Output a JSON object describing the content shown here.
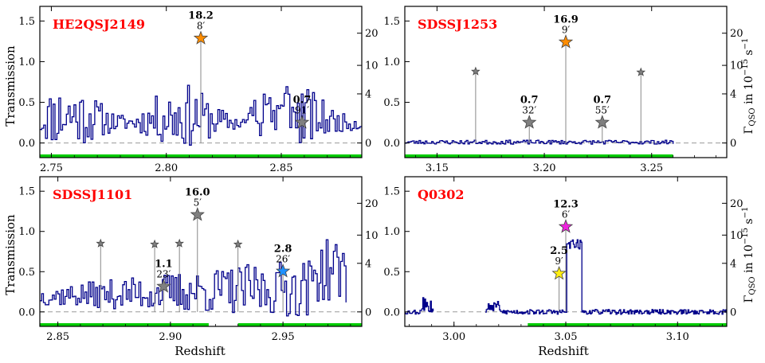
{
  "figure": {
    "ylabel": "Transmission",
    "xlabel": "Redshift",
    "right_label_main": "Γ",
    "right_label_sub": "QSO",
    "right_label_tail": " in 10",
    "right_label_exp": "−15",
    "right_label_unit": " s",
    "right_label_unit_exp": "−1",
    "colors": {
      "flux": "#00008b",
      "coverage": "#00cc00",
      "title": "#ff0000",
      "gray_star": "#808080",
      "orange_star": "#ff8c00",
      "blue_star": "#1e90ff",
      "magenta_star": "#ee22dd",
      "yellow_star": "#ffee11"
    }
  },
  "chart_data": [
    {
      "type": "line",
      "title": "HE2QSJ2149",
      "xlim": [
        2.745,
        2.885
      ],
      "ylim": [
        -0.18,
        1.68
      ],
      "xticks": [
        "2.75",
        "2.80",
        "2.85"
      ],
      "xtick_values": [
        2.75,
        2.8,
        2.85
      ],
      "yticks": [
        "0.0",
        "0.5",
        "1.0",
        "1.5"
      ],
      "ytick_values": [
        0.0,
        0.5,
        1.0,
        1.5
      ],
      "right_ticks": [
        "0",
        "4",
        "10",
        "20"
      ],
      "right_tick_values": [
        0,
        4,
        10,
        20
      ],
      "coverage": [
        [
          2.745,
          2.885
        ]
      ],
      "flux_range": [
        2.745,
        2.885
      ],
      "flux_seed": 11,
      "flux_profile": "noisy",
      "flux_level": 0.22,
      "flux_amp": 0.5,
      "galaxies": [
        {
          "z": 2.815,
          "gamma": "18.2",
          "gamma_value": 18.2,
          "dist": "8′",
          "color": "orange",
          "size": "big"
        },
        {
          "z": 2.859,
          "gamma": "0.7",
          "gamma_value": 0.7,
          "dist": "91′",
          "color": "gray",
          "size": "big"
        }
      ]
    },
    {
      "type": "line",
      "title": "SDSSJ1253",
      "xlim": [
        3.135,
        3.285
      ],
      "ylim": [
        -0.18,
        1.68
      ],
      "xticks": [
        "3.15",
        "3.20",
        "3.25"
      ],
      "xtick_values": [
        3.15,
        3.2,
        3.25
      ],
      "yticks": [
        "0.0",
        "0.5",
        "1.0",
        "1.5"
      ],
      "ytick_values": [
        0.0,
        0.5,
        1.0,
        1.5
      ],
      "right_ticks": [
        "0",
        "4",
        "10",
        "20"
      ],
      "right_tick_values": [
        0,
        4,
        10,
        20
      ],
      "coverage": [
        [
          3.135,
          3.26
        ]
      ],
      "flux_range": [
        3.135,
        3.26
      ],
      "flux_seed": 23,
      "flux_profile": "flat",
      "flux_level": 0.01,
      "flux_amp": 0.05,
      "galaxies": [
        {
          "z": 3.168,
          "gamma": "",
          "gamma_value": null,
          "dist": "",
          "color": "gray",
          "size": "small",
          "y": 0.88
        },
        {
          "z": 3.193,
          "gamma": "0.7",
          "gamma_value": 0.7,
          "dist": "32′",
          "color": "gray",
          "size": "big"
        },
        {
          "z": 3.21,
          "gamma": "16.9",
          "gamma_value": 16.9,
          "dist": "9′",
          "color": "orange",
          "size": "big"
        },
        {
          "z": 3.227,
          "gamma": "0.7",
          "gamma_value": 0.7,
          "dist": "55′",
          "color": "gray",
          "size": "big"
        },
        {
          "z": 3.245,
          "gamma": "",
          "gamma_value": null,
          "dist": "",
          "color": "gray",
          "size": "small",
          "y": 0.87
        }
      ]
    },
    {
      "type": "line",
      "title": "SDSSJ1101",
      "xlim": [
        2.842,
        2.985
      ],
      "ylim": [
        -0.18,
        1.68
      ],
      "xticks": [
        "2.85",
        "2.90",
        "2.95"
      ],
      "xtick_values": [
        2.85,
        2.9,
        2.95
      ],
      "yticks": [
        "0.0",
        "0.5",
        "1.0",
        "1.5"
      ],
      "ytick_values": [
        0.0,
        0.5,
        1.0,
        1.5
      ],
      "right_ticks": [
        "0",
        "4",
        "10",
        "20"
      ],
      "right_tick_values": [
        0,
        4,
        10,
        20
      ],
      "coverage": [
        [
          2.842,
          2.917
        ],
        [
          2.93,
          2.985
        ]
      ],
      "flux_range": [
        2.842,
        2.978
      ],
      "flux_seed": 37,
      "flux_profile": "rising",
      "flux_level": 0.15,
      "flux_amp": 0.45,
      "galaxies": [
        {
          "z": 2.869,
          "gamma": "",
          "gamma_value": null,
          "dist": "",
          "color": "gray",
          "size": "small",
          "y": 0.85
        },
        {
          "z": 2.893,
          "gamma": "",
          "gamma_value": null,
          "dist": "",
          "color": "gray",
          "size": "small",
          "y": 0.84
        },
        {
          "z": 2.897,
          "gamma": "1.1",
          "gamma_value": 1.1,
          "dist": "23′",
          "color": "gray",
          "size": "big"
        },
        {
          "z": 2.904,
          "gamma": "",
          "gamma_value": null,
          "dist": "",
          "color": "gray",
          "size": "small",
          "y": 0.85
        },
        {
          "z": 2.912,
          "gamma": "16.0",
          "gamma_value": 16.0,
          "dist": "5′",
          "color": "gray",
          "size": "big"
        },
        {
          "z": 2.93,
          "gamma": "",
          "gamma_value": null,
          "dist": "",
          "color": "gray",
          "size": "small",
          "y": 0.84
        },
        {
          "z": 2.95,
          "gamma": "2.8",
          "gamma_value": 2.8,
          "dist": "26′",
          "color": "blue",
          "size": "big"
        }
      ]
    },
    {
      "type": "line",
      "title": "Q0302",
      "xlim": [
        2.978,
        3.122
      ],
      "ylim": [
        -0.18,
        1.68
      ],
      "xticks": [
        "3.00",
        "3.05",
        "3.10"
      ],
      "xtick_values": [
        3.0,
        3.05,
        3.1
      ],
      "yticks": [
        "0.0",
        "0.5",
        "1.0",
        "1.5"
      ],
      "ytick_values": [
        0.0,
        0.5,
        1.0,
        1.5
      ],
      "right_ticks": [
        "0",
        "4",
        "10",
        "20"
      ],
      "right_tick_values": [
        0,
        4,
        10,
        20
      ],
      "coverage": [
        [
          3.033,
          3.122
        ]
      ],
      "flux_range": [
        2.978,
        3.122
      ],
      "flux_gap": [
        2.991,
        3.014
      ],
      "flux_seed": 53,
      "flux_profile": "q0302",
      "flux_level": 0.0,
      "flux_amp": 0.06,
      "galaxies": [
        {
          "z": 3.047,
          "gamma": "2.5",
          "gamma_value": 2.5,
          "dist": "9′",
          "color": "yellow",
          "size": "big"
        },
        {
          "z": 3.05,
          "gamma": "12.3",
          "gamma_value": 12.3,
          "dist": "6′",
          "color": "magenta",
          "size": "big"
        }
      ]
    }
  ]
}
